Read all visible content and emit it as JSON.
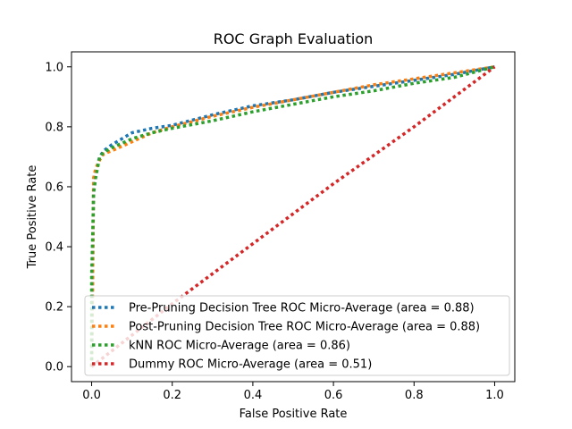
{
  "chart_data": {
    "type": "line",
    "title": "ROC Graph Evaluation",
    "xlabel": "False Positive Rate",
    "ylabel": "True Positive Rate",
    "xlim": [
      -0.05,
      1.05
    ],
    "ylim": [
      -0.05,
      1.05
    ],
    "xticks": [
      "0.0",
      "0.2",
      "0.4",
      "0.6",
      "0.8",
      "1.0"
    ],
    "yticks": [
      "0.0",
      "0.2",
      "0.4",
      "0.6",
      "0.8",
      "1.0"
    ],
    "grid": false,
    "legend_position": "lower-right",
    "series": [
      {
        "name": "Pre-Pruning Decision Tree ROC Micro-Average (area = 0.88)",
        "color": "#1f77b4",
        "x": [
          0.0,
          0.005,
          0.01,
          0.02,
          0.03,
          0.05,
          0.1,
          0.15,
          0.2,
          0.3,
          0.4,
          0.5,
          0.6,
          0.7,
          0.8,
          0.9,
          1.0
        ],
        "y": [
          0.0,
          0.62,
          0.65,
          0.7,
          0.72,
          0.74,
          0.78,
          0.795,
          0.805,
          0.84,
          0.87,
          0.89,
          0.915,
          0.935,
          0.955,
          0.975,
          1.0
        ]
      },
      {
        "name": "Post-Pruning Decision Tree ROC Micro-Average (area = 0.88)",
        "color": "#ff7f0e",
        "x": [
          0.0,
          0.005,
          0.01,
          0.02,
          0.03,
          0.05,
          0.1,
          0.15,
          0.2,
          0.3,
          0.4,
          0.5,
          0.6,
          0.7,
          0.8,
          0.9,
          1.0
        ],
        "y": [
          0.0,
          0.63,
          0.66,
          0.69,
          0.71,
          0.72,
          0.75,
          0.78,
          0.8,
          0.835,
          0.865,
          0.89,
          0.915,
          0.94,
          0.96,
          0.98,
          1.0
        ]
      },
      {
        "name": "kNN ROC Micro-Average (area = 0.86)",
        "color": "#2ca02c",
        "x": [
          0.0,
          0.0,
          0.005,
          0.01,
          0.02,
          0.03,
          0.05,
          0.1,
          0.15,
          0.2,
          0.3,
          0.4,
          0.5,
          0.6,
          0.7,
          0.8,
          0.9,
          1.0
        ],
        "y": [
          0.0,
          0.3,
          0.58,
          0.63,
          0.7,
          0.715,
          0.73,
          0.76,
          0.78,
          0.795,
          0.82,
          0.85,
          0.875,
          0.9,
          0.92,
          0.945,
          0.965,
          1.0
        ]
      },
      {
        "name": "Dummy ROC Micro-Average (area = 0.51)",
        "color": "#d62728",
        "x": [
          0.0,
          0.2,
          0.4,
          0.6,
          0.8,
          1.0
        ],
        "y": [
          0.0,
          0.21,
          0.41,
          0.61,
          0.8,
          1.0
        ]
      }
    ]
  }
}
